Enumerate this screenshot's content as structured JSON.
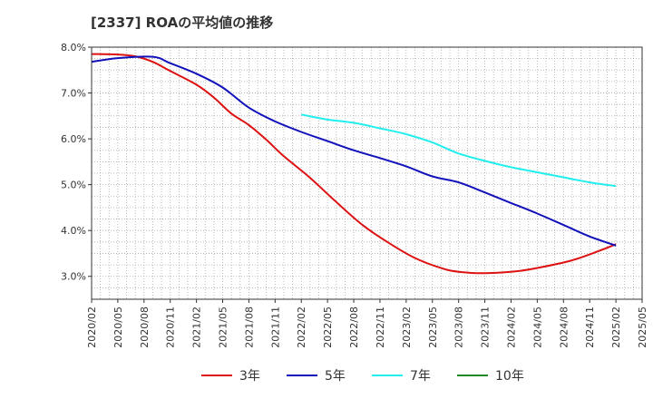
{
  "title": "[2337]  ROAの平均値の推移",
  "chart_data": {
    "type": "line",
    "title": "[2337]  ROAの平均値の推移",
    "xlabel": "",
    "ylabel": "",
    "x_ticks": [
      "2020/02",
      "2020/05",
      "2020/08",
      "2020/11",
      "2021/02",
      "2021/05",
      "2021/08",
      "2021/11",
      "2022/02",
      "2022/05",
      "2022/08",
      "2022/11",
      "2023/02",
      "2023/05",
      "2023/08",
      "2023/11",
      "2024/02",
      "2024/05",
      "2024/08",
      "2024/11",
      "2025/02",
      "2025/05"
    ],
    "y_ticks": [
      "3.0%",
      "4.0%",
      "5.0%",
      "6.0%",
      "7.0%",
      "8.0%"
    ],
    "y_tick_values": [
      3.0,
      4.0,
      5.0,
      6.0,
      7.0,
      8.0
    ],
    "ylim": [
      2.5,
      8.0
    ],
    "grid": true,
    "legend_position": "bottom",
    "series": [
      {
        "name": "3年",
        "color": "#dd1111",
        "points": [
          [
            "2020/02",
            7.85
          ],
          [
            "2020/05",
            7.84
          ],
          [
            "2020/07",
            7.8
          ],
          [
            "2020/09",
            7.68
          ],
          [
            "2020/11",
            7.48
          ],
          [
            "2021/02",
            7.18
          ],
          [
            "2021/04",
            6.9
          ],
          [
            "2021/06",
            6.55
          ],
          [
            "2021/08",
            6.3
          ],
          [
            "2021/10",
            5.98
          ],
          [
            "2021/12",
            5.62
          ],
          [
            "2022/03",
            5.15
          ],
          [
            "2022/06",
            4.62
          ],
          [
            "2022/09",
            4.12
          ],
          [
            "2022/12",
            3.73
          ],
          [
            "2023/03",
            3.4
          ],
          [
            "2023/06",
            3.18
          ],
          [
            "2023/08",
            3.1
          ],
          [
            "2023/11",
            3.07
          ],
          [
            "2024/03",
            3.12
          ],
          [
            "2024/06",
            3.22
          ],
          [
            "2024/09",
            3.35
          ],
          [
            "2024/12",
            3.55
          ],
          [
            "2025/02",
            3.7
          ]
        ]
      },
      {
        "name": "5年",
        "color": "#1111bb",
        "points": [
          [
            "2020/02",
            7.68
          ],
          [
            "2020/05",
            7.76
          ],
          [
            "2020/09",
            7.79
          ],
          [
            "2020/11",
            7.65
          ],
          [
            "2021/02",
            7.42
          ],
          [
            "2021/05",
            7.12
          ],
          [
            "2021/08",
            6.68
          ],
          [
            "2021/11",
            6.38
          ],
          [
            "2022/02",
            6.15
          ],
          [
            "2022/05",
            5.95
          ],
          [
            "2022/08",
            5.75
          ],
          [
            "2022/11",
            5.58
          ],
          [
            "2023/02",
            5.4
          ],
          [
            "2023/05",
            5.18
          ],
          [
            "2023/08",
            5.05
          ],
          [
            "2023/11",
            4.83
          ],
          [
            "2024/02",
            4.6
          ],
          [
            "2024/05",
            4.37
          ],
          [
            "2024/08",
            4.12
          ],
          [
            "2024/11",
            3.87
          ],
          [
            "2025/02",
            3.67
          ]
        ]
      },
      {
        "name": "7年",
        "color": "#22eeee",
        "points": [
          [
            "2022/02",
            6.53
          ],
          [
            "2022/05",
            6.42
          ],
          [
            "2022/08",
            6.35
          ],
          [
            "2022/11",
            6.23
          ],
          [
            "2023/02",
            6.1
          ],
          [
            "2023/05",
            5.92
          ],
          [
            "2023/08",
            5.68
          ],
          [
            "2023/11",
            5.52
          ],
          [
            "2024/02",
            5.38
          ],
          [
            "2024/05",
            5.27
          ],
          [
            "2024/08",
            5.16
          ],
          [
            "2024/11",
            5.05
          ],
          [
            "2025/02",
            4.97
          ]
        ]
      },
      {
        "name": "10年",
        "color": "#228822",
        "points": []
      }
    ]
  }
}
